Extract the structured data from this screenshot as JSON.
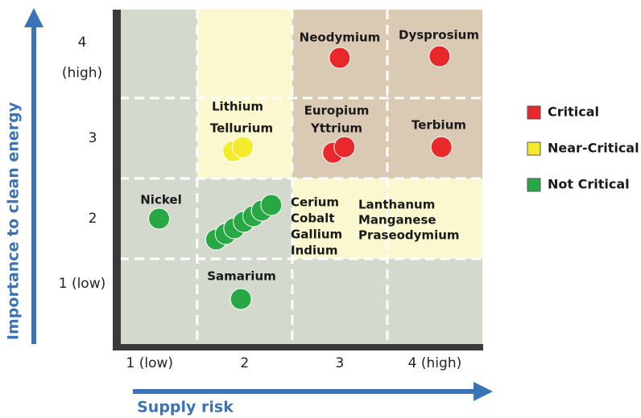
{
  "chart_data": {
    "type": "scatter",
    "xlabel": "Supply risk",
    "ylabel": "Importance to clean energy",
    "xlim": [
      0.68,
      4.5
    ],
    "ylim": [
      0.44,
      4.6
    ],
    "xticks": [
      {
        "value": 1,
        "label": "1 (low)"
      },
      2,
      3,
      {
        "value": 4,
        "label": "4 (high)"
      }
    ],
    "yticks": [
      {
        "value": 1,
        "label": "1 (low)"
      },
      2,
      3,
      {
        "value": 4,
        "label": "4 (high)"
      }
    ],
    "grid_x": [
      1.5,
      2.5,
      3.5
    ],
    "grid_y": [
      1.5,
      2.5,
      3.5
    ],
    "background_colors": [
      "#d3d9cd",
      "#fbf7cf",
      "#dacab4"
    ],
    "series": [
      {
        "name": "Critical",
        "color": "#e8282b",
        "x": [
          3.0,
          4.05,
          2.93,
          3.05,
          4.07
        ],
        "y": [
          4.0,
          4.02,
          2.82,
          2.89,
          2.89
        ]
      },
      {
        "name": "Near-Critical",
        "color": "#f2ea2a",
        "x": [
          1.88,
          1.98
        ],
        "y": [
          2.84,
          2.89
        ]
      },
      {
        "name": "Not Critical",
        "color": "#27a844",
        "x": [
          1.1,
          1.96,
          1.7,
          1.8,
          1.89,
          1.99,
          2.09,
          2.18,
          2.28
        ],
        "y": [
          2.0,
          1.0,
          1.74,
          1.81,
          1.88,
          1.96,
          2.03,
          2.1,
          2.17
        ]
      }
    ],
    "annotations": [
      "Neodymium",
      "Dysprosium",
      "Europium",
      "Yttrium",
      "Terbium",
      "Lithium",
      "Tellurium",
      "Nickel",
      "Samarium",
      "Cerium",
      "Cobalt",
      "Gallium",
      "Indium",
      "Lanthanum",
      "Manganese",
      "Praseodymium"
    ]
  }
}
